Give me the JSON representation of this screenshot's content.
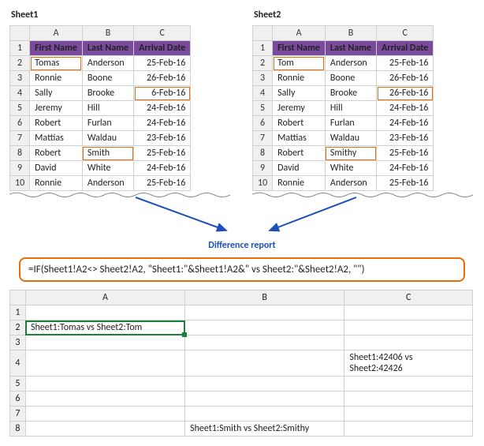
{
  "sheet1": {
    "label": "Sheet1",
    "columns": [
      "A",
      "B",
      "C"
    ],
    "header_row": [
      "First Name",
      "Last Name",
      "Arrival Date"
    ],
    "rows": [
      {
        "n": 2,
        "a": "Tomas",
        "b": "Anderson",
        "c": "25-Feb-16",
        "diff": [
          "a"
        ]
      },
      {
        "n": 3,
        "a": "Ronnie",
        "b": "Boone",
        "c": "26-Feb-16",
        "diff": []
      },
      {
        "n": 4,
        "a": "Sally",
        "b": "Brooke",
        "c": "6-Feb-16",
        "diff": [
          "c"
        ]
      },
      {
        "n": 5,
        "a": "Jeremy",
        "b": "Hill",
        "c": "24-Feb-16",
        "diff": []
      },
      {
        "n": 6,
        "a": "Robert",
        "b": "Furlan",
        "c": "24-Feb-16",
        "diff": []
      },
      {
        "n": 7,
        "a": "Mattias",
        "b": "Waldau",
        "c": "23-Feb-16",
        "diff": []
      },
      {
        "n": 8,
        "a": "Robert",
        "b": "Smith",
        "c": "25-Feb-16",
        "diff": [
          "b"
        ]
      },
      {
        "n": 9,
        "a": "David",
        "b": "White",
        "c": "24-Feb-16",
        "diff": []
      },
      {
        "n": 10,
        "a": "Ronnie",
        "b": "Anderson",
        "c": "25-Feb-16",
        "diff": []
      }
    ]
  },
  "sheet2": {
    "label": "Sheet2",
    "columns": [
      "A",
      "B",
      "C"
    ],
    "header_row": [
      "First Name",
      "Last Name",
      "Arrival Date"
    ],
    "rows": [
      {
        "n": 2,
        "a": "Tom",
        "b": "Anderson",
        "c": "25-Feb-16",
        "diff": [
          "a"
        ]
      },
      {
        "n": 3,
        "a": "Ronnie",
        "b": "Boone",
        "c": "26-Feb-16",
        "diff": []
      },
      {
        "n": 4,
        "a": "Sally",
        "b": "Brooke",
        "c": "26-Feb-16",
        "diff": [
          "c"
        ]
      },
      {
        "n": 5,
        "a": "Jeremy",
        "b": "Hill",
        "c": "24-Feb-16",
        "diff": []
      },
      {
        "n": 6,
        "a": "Robert",
        "b": "Furlan",
        "c": "24-Feb-16",
        "diff": []
      },
      {
        "n": 7,
        "a": "Mattias",
        "b": "Waldau",
        "c": "23-Feb-16",
        "diff": []
      },
      {
        "n": 8,
        "a": "Robert",
        "b": "Smithy",
        "c": "25-Feb-16",
        "diff": [
          "b"
        ]
      },
      {
        "n": 9,
        "a": "David",
        "b": "White",
        "c": "24-Feb-16",
        "diff": []
      },
      {
        "n": 10,
        "a": "Ronnie",
        "b": "Anderson",
        "c": "25-Feb-16",
        "diff": []
      }
    ]
  },
  "diff_label": "Difference report",
  "formula": "=IF(Sheet1!A2<> Sheet2!A2, \"Sheet1:\"&Sheet1!A2&\" vs Sheet2:\"&Sheet2!A2, \"\")",
  "result": {
    "columns": [
      "A",
      "B",
      "C"
    ],
    "rows": [
      {
        "n": 1,
        "a": "",
        "b": "",
        "c": ""
      },
      {
        "n": 2,
        "a": "Sheet1:Tomas vs Sheet2:Tom",
        "b": "",
        "c": "",
        "sel": "a"
      },
      {
        "n": 3,
        "a": "",
        "b": "",
        "c": ""
      },
      {
        "n": 4,
        "a": "",
        "b": "",
        "c": "Sheet1:42406 vs Sheet2:42426"
      },
      {
        "n": 5,
        "a": "",
        "b": "",
        "c": ""
      },
      {
        "n": 6,
        "a": "",
        "b": "",
        "c": ""
      },
      {
        "n": 7,
        "a": "",
        "b": "",
        "c": ""
      },
      {
        "n": 8,
        "a": "",
        "b": "Sheet1:Smith vs Sheet2:Smithy",
        "c": ""
      }
    ]
  },
  "colors": {
    "highlight": "#e86c0a",
    "header_bg": "#7a4a9c",
    "arrow": "#1d4fbb",
    "select": "#1a7f37"
  }
}
